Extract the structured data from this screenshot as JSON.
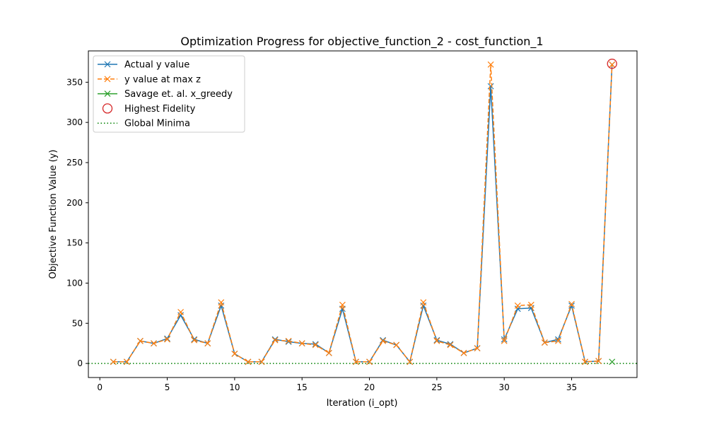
{
  "chart_data": {
    "type": "line",
    "title": "Optimization Progress for objective_function_2 - cost_function_1",
    "xlabel": "Iteration (i_opt)",
    "ylabel": "Objective Function Value (y)",
    "xlim": [
      -0.85,
      39.85
    ],
    "ylim": [
      -17.5,
      389
    ],
    "xticks": [
      0,
      5,
      10,
      15,
      20,
      25,
      30,
      35
    ],
    "yticks": [
      0,
      50,
      100,
      150,
      200,
      250,
      300,
      350
    ],
    "legend_position": "top-left",
    "series": [
      {
        "name": "Actual y value",
        "color": "#1f77b4",
        "style": "solid",
        "marker": "x",
        "x": [
          1,
          2,
          3,
          4,
          5,
          6,
          7,
          8,
          9,
          10,
          11,
          12,
          13,
          14,
          15,
          16,
          17,
          18,
          19,
          20,
          21,
          22,
          23,
          24,
          25,
          26,
          27,
          28,
          29,
          30,
          31,
          32,
          33,
          34,
          35,
          36,
          37,
          38
        ],
        "y": [
          2,
          2,
          28,
          25,
          31,
          60,
          30,
          25,
          72,
          12,
          2,
          2,
          30,
          27,
          25,
          24,
          13,
          68,
          2,
          2,
          29,
          23,
          2,
          72,
          29,
          24,
          13,
          19,
          345,
          30,
          68,
          69,
          26,
          30,
          72,
          2,
          3,
          372
        ]
      },
      {
        "name": "y value at max z",
        "color": "#ff7f0e",
        "style": "dashed",
        "marker": "x",
        "x": [
          1,
          2,
          3,
          4,
          5,
          6,
          7,
          8,
          9,
          10,
          11,
          12,
          13,
          14,
          15,
          16,
          17,
          18,
          19,
          20,
          21,
          22,
          23,
          24,
          25,
          26,
          27,
          28,
          29,
          30,
          31,
          32,
          33,
          34,
          35,
          36,
          37,
          38
        ],
        "y": [
          2,
          2,
          28,
          25,
          30,
          64,
          29,
          25,
          76,
          12,
          2,
          2,
          29,
          28,
          25,
          23,
          13,
          73,
          2,
          2,
          28,
          23,
          2,
          76,
          28,
          23,
          13,
          19,
          372,
          28,
          72,
          73,
          26,
          28,
          74,
          2,
          3,
          372
        ]
      },
      {
        "name": "Savage et. al. x_greedy",
        "color": "#2ca02c",
        "style": "solid",
        "marker": "x",
        "x": [
          38
        ],
        "y": [
          2
        ]
      },
      {
        "name": "Highest Fidelity",
        "color": "#d62728",
        "style": "none",
        "marker": "circle",
        "x": [
          38
        ],
        "y": [
          373
        ]
      },
      {
        "name": "Global Minima",
        "color": "#008000",
        "style": "dotted",
        "marker": "none",
        "hline": 0
      }
    ]
  }
}
